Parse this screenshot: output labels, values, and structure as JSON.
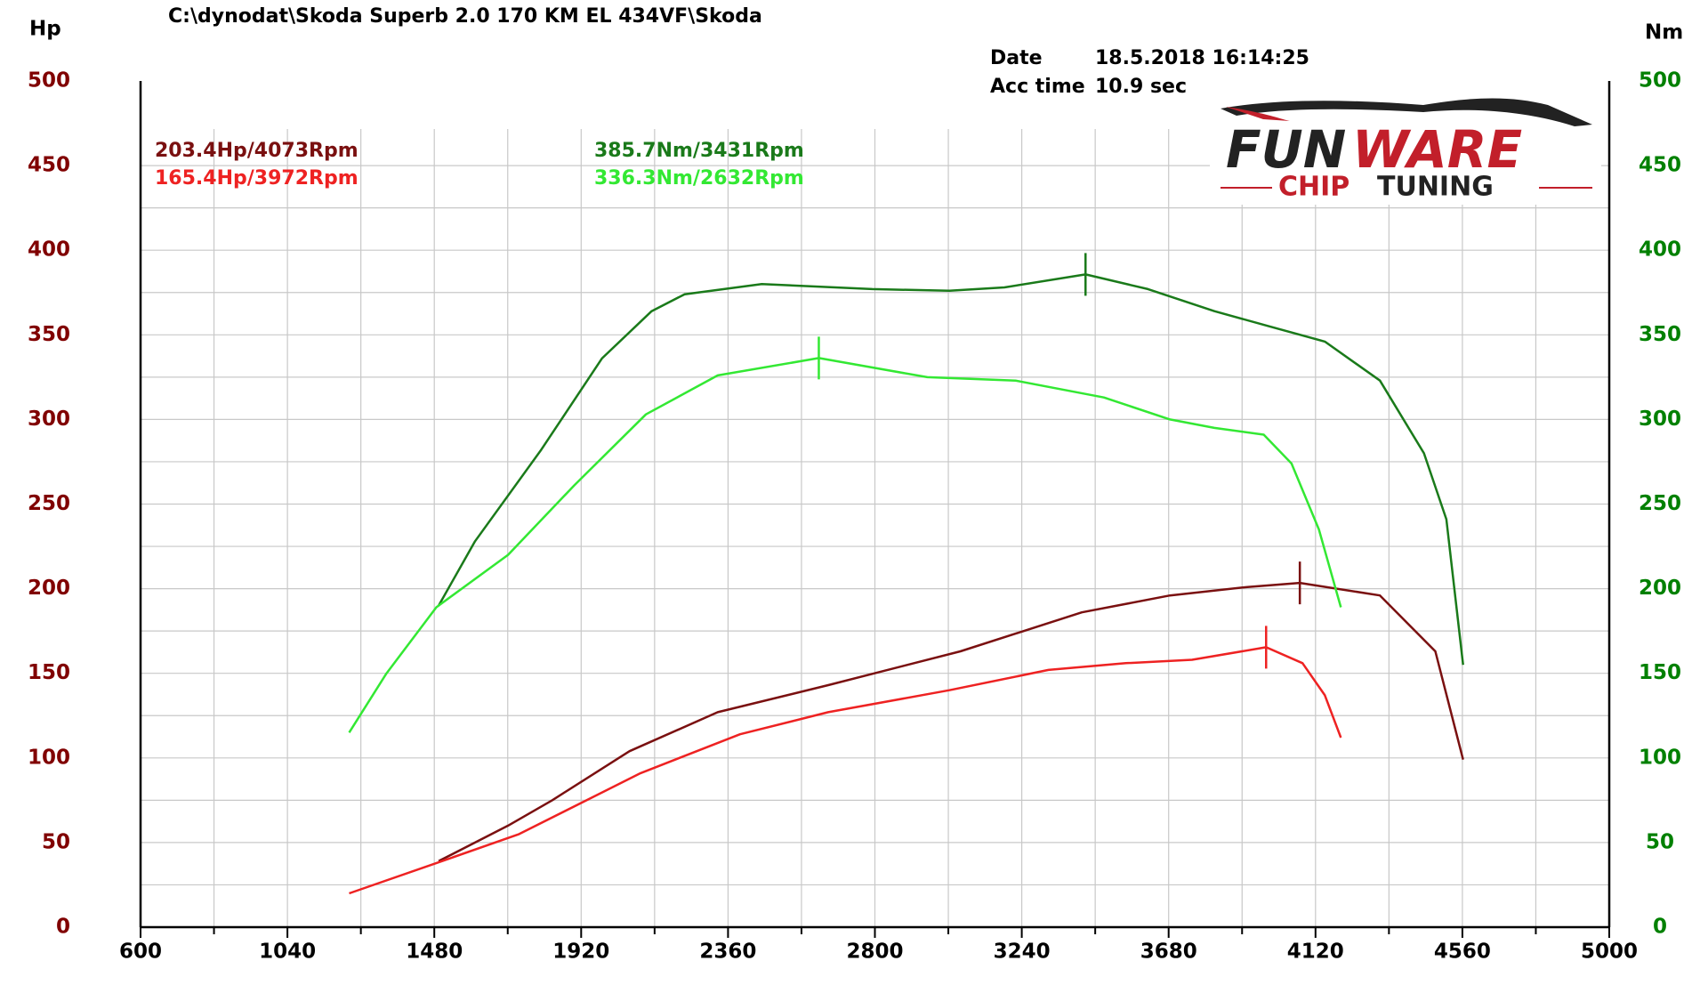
{
  "chart_data": {
    "type": "line",
    "title": "C:\\dynodat\\Skoda Superb 2.0 170 KM EL 434VF\\Skoda",
    "y_label": "Hp",
    "y2_label": "Nm",
    "date_label": "Date",
    "date": "18.5.2018 16:14:25",
    "acc_label": "Acc time",
    "acc_time": "10.9 sec",
    "xlim": [
      600,
      5000
    ],
    "xticks": [
      600,
      1040,
      1480,
      1920,
      2360,
      2800,
      3240,
      3680,
      4120,
      4560,
      5000
    ],
    "ylim": [
      0,
      500
    ],
    "yticks": [
      0,
      50,
      100,
      150,
      200,
      250,
      300,
      350,
      400,
      450,
      500
    ],
    "y2lim": [
      0,
      500
    ],
    "y2ticks": [
      0,
      50,
      100,
      150,
      200,
      250,
      300,
      350,
      400,
      450,
      500
    ],
    "grid": true,
    "y_color": "#800000",
    "y2_color": "#008000",
    "series": [
      {
        "color": "#7a1010",
        "axis": "y",
        "annotation": "203.4Hp/4073Rpm",
        "peak": {
          "x": 4073,
          "y": 203.4
        },
        "x": [
          1493,
          1701,
          1833,
          2065,
          2329,
          2660,
          3056,
          3420,
          3684,
          3916,
          4073,
          4313,
          4479,
          4562
        ],
        "values": [
          39,
          60,
          75,
          104,
          127,
          143,
          163,
          186,
          196,
          201,
          203.4,
          196,
          163,
          99
        ]
      },
      {
        "color": "#ee2222",
        "axis": "y",
        "annotation": "165.4Hp/3972Rpm",
        "peak": {
          "x": 3972,
          "y": 165.4
        },
        "x": [
          1225,
          1503,
          1734,
          2098,
          2396,
          2660,
          3023,
          3320,
          3552,
          3750,
          3972,
          4081,
          4148,
          4196
        ],
        "values": [
          20,
          39,
          55,
          91,
          114,
          127,
          140,
          152,
          156,
          158,
          165.4,
          156,
          137,
          112
        ]
      },
      {
        "color": "#1a7a1a",
        "axis": "y2",
        "annotation": "385.7Nm/3431Rpm",
        "peak": {
          "x": 3431,
          "y": 385.7
        },
        "x": [
          1493,
          1602,
          1800,
          1982,
          2131,
          2230,
          2461,
          2792,
          3023,
          3188,
          3431,
          3618,
          3817,
          3982,
          4148,
          4313,
          4445,
          4512,
          4562
        ],
        "values": [
          190,
          228,
          282,
          336,
          364,
          374,
          380,
          377,
          376,
          378,
          385.7,
          377,
          364,
          355,
          346,
          323,
          280,
          241,
          155
        ]
      },
      {
        "color": "#33e833",
        "axis": "y2",
        "annotation": "336.3Nm/2632Rpm",
        "peak": {
          "x": 2632,
          "y": 336.3
        },
        "x": [
          1225,
          1337,
          1486,
          1701,
          1899,
          2114,
          2329,
          2632,
          2957,
          3221,
          3486,
          3684,
          3817,
          3965,
          4048,
          4130,
          4196
        ],
        "values": [
          115,
          150,
          189,
          220,
          261,
          303,
          326,
          336.3,
          325,
          323,
          313,
          300,
          295,
          291,
          274,
          235,
          189
        ]
      }
    ]
  },
  "logo": {
    "fun": "FUN",
    "ware": "WARE",
    "chip": "CHIP",
    "tuning": "TUNING"
  }
}
